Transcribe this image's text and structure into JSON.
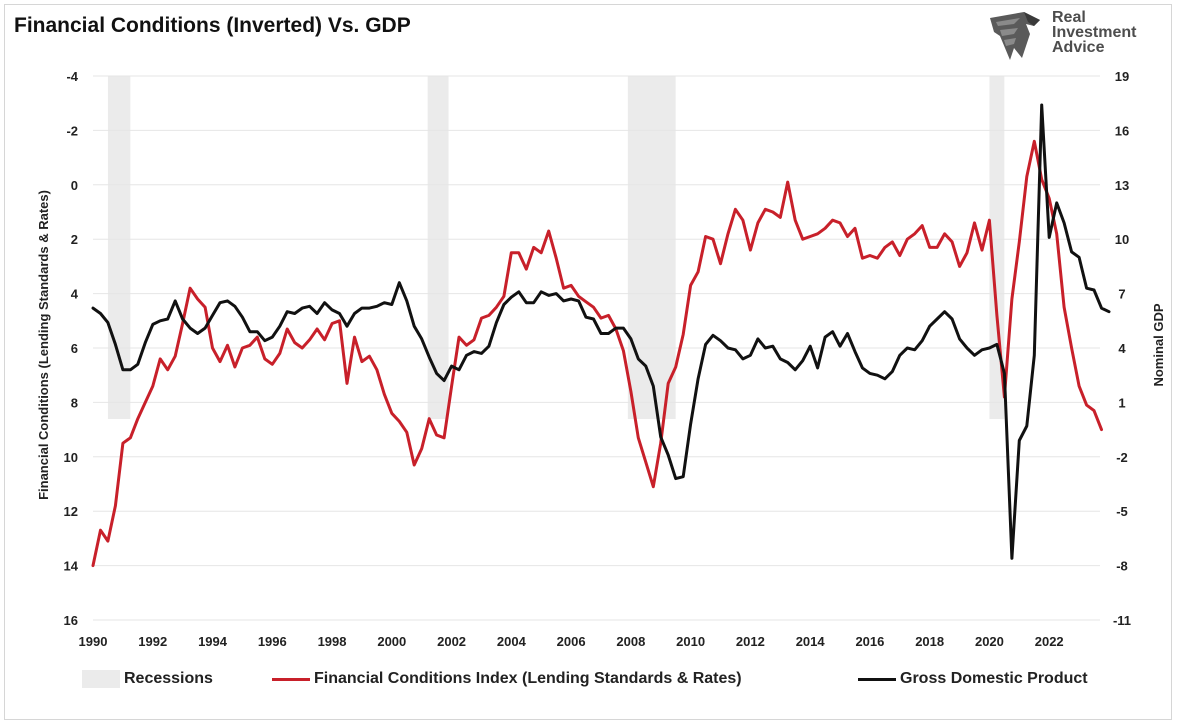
{
  "title": "Financial Conditions (Inverted) Vs. GDP",
  "logo": {
    "line1": "Real",
    "line2": "Investment",
    "line3": "Advice",
    "icon": "eagle-head-icon"
  },
  "colors": {
    "fci": "#c8202a",
    "gdp": "#111111",
    "recession": "#ebebeb"
  },
  "chart_data": {
    "type": "line",
    "title": "Financial Conditions (Inverted) Vs. GDP",
    "x_ticks": [
      "1990",
      "1992",
      "1994",
      "1996",
      "1998",
      "2000",
      "2002",
      "2004",
      "2006",
      "2008",
      "2010",
      "2012",
      "2014",
      "2016",
      "2018",
      "2020",
      "2022"
    ],
    "xlim": [
      1990,
      2023.7
    ],
    "left_axis": {
      "label": "Financial Conditions (Lending Standards & Rates)",
      "ticks": [
        "-4",
        "-2",
        "0",
        "2",
        "4",
        "6",
        "8",
        "10",
        "12",
        "14",
        "16"
      ],
      "range_top": -4,
      "range_bottom": 16,
      "inverted": true
    },
    "right_axis": {
      "label": "Nominal GDP",
      "ticks": [
        "19",
        "16",
        "13",
        "10",
        "7",
        "4",
        "1",
        "-2",
        "-5",
        "-8",
        "-11"
      ],
      "range_top": 19,
      "range_bottom": -11
    },
    "grid": "horizontal",
    "legend_position": "bottom",
    "recessions": [
      [
        1990.5,
        1991.25
      ],
      [
        2001.2,
        2001.9
      ],
      [
        2007.9,
        2009.5
      ],
      [
        2020.0,
        2020.5
      ]
    ],
    "series": [
      {
        "name": "Financial Conditions Index (Lending Standards & Rates)",
        "axis": "left",
        "color": "#c8202a",
        "points": [
          [
            1990.0,
            14.0
          ],
          [
            1990.25,
            12.7
          ],
          [
            1990.5,
            13.1
          ],
          [
            1990.75,
            11.8
          ],
          [
            1991.0,
            9.5
          ],
          [
            1991.25,
            9.3
          ],
          [
            1991.5,
            8.6
          ],
          [
            1991.75,
            8.0
          ],
          [
            1992.0,
            7.4
          ],
          [
            1992.25,
            6.4
          ],
          [
            1992.5,
            6.8
          ],
          [
            1992.75,
            6.3
          ],
          [
            1993.0,
            5.1
          ],
          [
            1993.25,
            3.8
          ],
          [
            1993.5,
            4.2
          ],
          [
            1993.75,
            4.5
          ],
          [
            1994.0,
            6.0
          ],
          [
            1994.25,
            6.5
          ],
          [
            1994.5,
            5.9
          ],
          [
            1994.75,
            6.7
          ],
          [
            1995.0,
            6.0
          ],
          [
            1995.25,
            5.9
          ],
          [
            1995.5,
            5.6
          ],
          [
            1995.75,
            6.4
          ],
          [
            1996.0,
            6.6
          ],
          [
            1996.25,
            6.2
          ],
          [
            1996.5,
            5.3
          ],
          [
            1996.75,
            5.8
          ],
          [
            1997.0,
            6.0
          ],
          [
            1997.25,
            5.7
          ],
          [
            1997.5,
            5.3
          ],
          [
            1997.75,
            5.7
          ],
          [
            1998.0,
            5.1
          ],
          [
            1998.25,
            5.0
          ],
          [
            1998.5,
            7.3
          ],
          [
            1998.75,
            5.6
          ],
          [
            1999.0,
            6.5
          ],
          [
            1999.25,
            6.3
          ],
          [
            1999.5,
            6.8
          ],
          [
            1999.75,
            7.7
          ],
          [
            2000.0,
            8.4
          ],
          [
            2000.25,
            8.7
          ],
          [
            2000.5,
            9.1
          ],
          [
            2000.75,
            10.3
          ],
          [
            2001.0,
            9.7
          ],
          [
            2001.25,
            8.6
          ],
          [
            2001.5,
            9.2
          ],
          [
            2001.75,
            9.3
          ],
          [
            2002.0,
            7.4
          ],
          [
            2002.25,
            5.6
          ],
          [
            2002.5,
            5.9
          ],
          [
            2002.75,
            5.7
          ],
          [
            2003.0,
            4.9
          ],
          [
            2003.25,
            4.8
          ],
          [
            2003.5,
            4.5
          ],
          [
            2003.75,
            4.1
          ],
          [
            2004.0,
            2.5
          ],
          [
            2004.25,
            2.5
          ],
          [
            2004.5,
            3.1
          ],
          [
            2004.75,
            2.3
          ],
          [
            2005.0,
            2.5
          ],
          [
            2005.25,
            1.7
          ],
          [
            2005.5,
            2.7
          ],
          [
            2005.75,
            3.8
          ],
          [
            2006.0,
            3.7
          ],
          [
            2006.25,
            4.1
          ],
          [
            2006.5,
            4.3
          ],
          [
            2006.75,
            4.5
          ],
          [
            2007.0,
            4.9
          ],
          [
            2007.25,
            4.8
          ],
          [
            2007.5,
            5.3
          ],
          [
            2007.75,
            6.1
          ],
          [
            2008.0,
            7.6
          ],
          [
            2008.25,
            9.3
          ],
          [
            2008.5,
            10.2
          ],
          [
            2008.75,
            11.1
          ],
          [
            2009.0,
            9.5
          ],
          [
            2009.25,
            7.3
          ],
          [
            2009.5,
            6.7
          ],
          [
            2009.75,
            5.5
          ],
          [
            2010.0,
            3.7
          ],
          [
            2010.25,
            3.2
          ],
          [
            2010.5,
            1.9
          ],
          [
            2010.75,
            2.0
          ],
          [
            2011.0,
            2.9
          ],
          [
            2011.25,
            1.8
          ],
          [
            2011.5,
            0.9
          ],
          [
            2011.75,
            1.3
          ],
          [
            2012.0,
            2.4
          ],
          [
            2012.25,
            1.4
          ],
          [
            2012.5,
            0.9
          ],
          [
            2012.75,
            1.0
          ],
          [
            2013.0,
            1.2
          ],
          [
            2013.25,
            -0.1
          ],
          [
            2013.5,
            1.3
          ],
          [
            2013.75,
            2.0
          ],
          [
            2014.0,
            1.9
          ],
          [
            2014.25,
            1.8
          ],
          [
            2014.5,
            1.6
          ],
          [
            2014.75,
            1.3
          ],
          [
            2015.0,
            1.4
          ],
          [
            2015.25,
            1.9
          ],
          [
            2015.5,
            1.6
          ],
          [
            2015.75,
            2.7
          ],
          [
            2016.0,
            2.6
          ],
          [
            2016.25,
            2.7
          ],
          [
            2016.5,
            2.3
          ],
          [
            2016.75,
            2.1
          ],
          [
            2017.0,
            2.6
          ],
          [
            2017.25,
            2.0
          ],
          [
            2017.5,
            1.8
          ],
          [
            2017.75,
            1.5
          ],
          [
            2018.0,
            2.3
          ],
          [
            2018.25,
            2.3
          ],
          [
            2018.5,
            1.8
          ],
          [
            2018.75,
            2.1
          ],
          [
            2019.0,
            3.0
          ],
          [
            2019.25,
            2.5
          ],
          [
            2019.5,
            1.4
          ],
          [
            2019.75,
            2.4
          ],
          [
            2020.0,
            1.3
          ],
          [
            2020.25,
            4.8
          ],
          [
            2020.5,
            7.8
          ],
          [
            2020.75,
            4.2
          ],
          [
            2021.0,
            2.1
          ],
          [
            2021.25,
            -0.3
          ],
          [
            2021.5,
            -1.6
          ],
          [
            2021.75,
            -0.2
          ],
          [
            2022.0,
            0.5
          ],
          [
            2022.25,
            1.8
          ],
          [
            2022.5,
            4.5
          ],
          [
            2022.75,
            6.0
          ],
          [
            2023.0,
            7.4
          ],
          [
            2023.25,
            8.1
          ],
          [
            2023.5,
            8.3
          ],
          [
            2023.75,
            9.0
          ]
        ]
      },
      {
        "name": "Gross Domestic Product",
        "axis": "right",
        "color": "#111111",
        "points": [
          [
            1990.0,
            6.2
          ],
          [
            1990.25,
            5.9
          ],
          [
            1990.5,
            5.4
          ],
          [
            1990.75,
            4.2
          ],
          [
            1991.0,
            2.8
          ],
          [
            1991.25,
            2.8
          ],
          [
            1991.5,
            3.1
          ],
          [
            1991.75,
            4.3
          ],
          [
            1992.0,
            5.3
          ],
          [
            1992.25,
            5.5
          ],
          [
            1992.5,
            5.6
          ],
          [
            1992.75,
            6.6
          ],
          [
            1993.0,
            5.6
          ],
          [
            1993.25,
            5.1
          ],
          [
            1993.5,
            4.8
          ],
          [
            1993.75,
            5.1
          ],
          [
            1994.0,
            5.8
          ],
          [
            1994.25,
            6.5
          ],
          [
            1994.5,
            6.6
          ],
          [
            1994.75,
            6.3
          ],
          [
            1995.0,
            5.7
          ],
          [
            1995.25,
            4.9
          ],
          [
            1995.5,
            4.9
          ],
          [
            1995.75,
            4.4
          ],
          [
            1996.0,
            4.6
          ],
          [
            1996.25,
            5.2
          ],
          [
            1996.5,
            6.0
          ],
          [
            1996.75,
            5.9
          ],
          [
            1997.0,
            6.2
          ],
          [
            1997.25,
            6.3
          ],
          [
            1997.5,
            5.9
          ],
          [
            1997.75,
            6.5
          ],
          [
            1998.0,
            6.1
          ],
          [
            1998.25,
            5.9
          ],
          [
            1998.5,
            5.2
          ],
          [
            1998.75,
            5.9
          ],
          [
            1999.0,
            6.2
          ],
          [
            1999.25,
            6.2
          ],
          [
            1999.5,
            6.3
          ],
          [
            1999.75,
            6.5
          ],
          [
            2000.0,
            6.4
          ],
          [
            2000.25,
            7.6
          ],
          [
            2000.5,
            6.6
          ],
          [
            2000.75,
            5.2
          ],
          [
            2001.0,
            4.5
          ],
          [
            2001.25,
            3.5
          ],
          [
            2001.5,
            2.6
          ],
          [
            2001.75,
            2.2
          ],
          [
            2002.0,
            3.0
          ],
          [
            2002.25,
            2.8
          ],
          [
            2002.5,
            3.6
          ],
          [
            2002.75,
            3.8
          ],
          [
            2003.0,
            3.7
          ],
          [
            2003.25,
            4.1
          ],
          [
            2003.5,
            5.4
          ],
          [
            2003.75,
            6.4
          ],
          [
            2004.0,
            6.8
          ],
          [
            2004.25,
            7.1
          ],
          [
            2004.5,
            6.5
          ],
          [
            2004.75,
            6.5
          ],
          [
            2005.0,
            7.1
          ],
          [
            2005.25,
            6.9
          ],
          [
            2005.5,
            7.0
          ],
          [
            2005.75,
            6.6
          ],
          [
            2006.0,
            6.7
          ],
          [
            2006.25,
            6.6
          ],
          [
            2006.5,
            5.7
          ],
          [
            2006.75,
            5.6
          ],
          [
            2007.0,
            4.8
          ],
          [
            2007.25,
            4.8
          ],
          [
            2007.5,
            5.1
          ],
          [
            2007.75,
            5.1
          ],
          [
            2008.0,
            4.5
          ],
          [
            2008.25,
            3.4
          ],
          [
            2008.5,
            3.0
          ],
          [
            2008.75,
            1.9
          ],
          [
            2009.0,
            -0.9
          ],
          [
            2009.25,
            -1.9
          ],
          [
            2009.5,
            -3.2
          ],
          [
            2009.75,
            -3.1
          ],
          [
            2010.0,
            -0.2
          ],
          [
            2010.25,
            2.3
          ],
          [
            2010.5,
            4.2
          ],
          [
            2010.75,
            4.7
          ],
          [
            2011.0,
            4.4
          ],
          [
            2011.25,
            4.0
          ],
          [
            2011.5,
            3.9
          ],
          [
            2011.75,
            3.4
          ],
          [
            2012.0,
            3.6
          ],
          [
            2012.25,
            4.5
          ],
          [
            2012.5,
            4.0
          ],
          [
            2012.75,
            4.1
          ],
          [
            2013.0,
            3.4
          ],
          [
            2013.25,
            3.2
          ],
          [
            2013.5,
            2.8
          ],
          [
            2013.75,
            3.3
          ],
          [
            2014.0,
            4.1
          ],
          [
            2014.25,
            2.9
          ],
          [
            2014.5,
            4.6
          ],
          [
            2014.75,
            4.9
          ],
          [
            2015.0,
            4.1
          ],
          [
            2015.25,
            4.8
          ],
          [
            2015.5,
            3.8
          ],
          [
            2015.75,
            2.9
          ],
          [
            2016.0,
            2.6
          ],
          [
            2016.25,
            2.5
          ],
          [
            2016.5,
            2.3
          ],
          [
            2016.75,
            2.7
          ],
          [
            2017.0,
            3.6
          ],
          [
            2017.25,
            4.0
          ],
          [
            2017.5,
            3.9
          ],
          [
            2017.75,
            4.4
          ],
          [
            2018.0,
            5.2
          ],
          [
            2018.25,
            5.6
          ],
          [
            2018.5,
            6.0
          ],
          [
            2018.75,
            5.6
          ],
          [
            2019.0,
            4.5
          ],
          [
            2019.25,
            4.0
          ],
          [
            2019.5,
            3.6
          ],
          [
            2019.75,
            3.9
          ],
          [
            2020.0,
            4.0
          ],
          [
            2020.25,
            4.2
          ],
          [
            2020.5,
            2.6
          ],
          [
            2020.75,
            -7.6
          ],
          [
            2021.0,
            -1.1
          ],
          [
            2021.25,
            -0.3
          ],
          [
            2021.5,
            3.6
          ],
          [
            2021.75,
            17.4
          ],
          [
            2022.0,
            10.1
          ],
          [
            2022.25,
            12.0
          ],
          [
            2022.5,
            10.9
          ],
          [
            2022.75,
            9.3
          ],
          [
            2023.0,
            9.0
          ],
          [
            2023.25,
            7.3
          ],
          [
            2023.5,
            7.2
          ],
          [
            2023.75,
            6.2
          ],
          [
            2024.0,
            6.0
          ]
        ]
      }
    ]
  },
  "legend": [
    {
      "label": "Recessions",
      "kind": "box"
    },
    {
      "label": "Financial Conditions Index (Lending Standards & Rates)",
      "kind": "line-red"
    },
    {
      "label": "Gross Domestic Product",
      "kind": "line-black"
    }
  ]
}
